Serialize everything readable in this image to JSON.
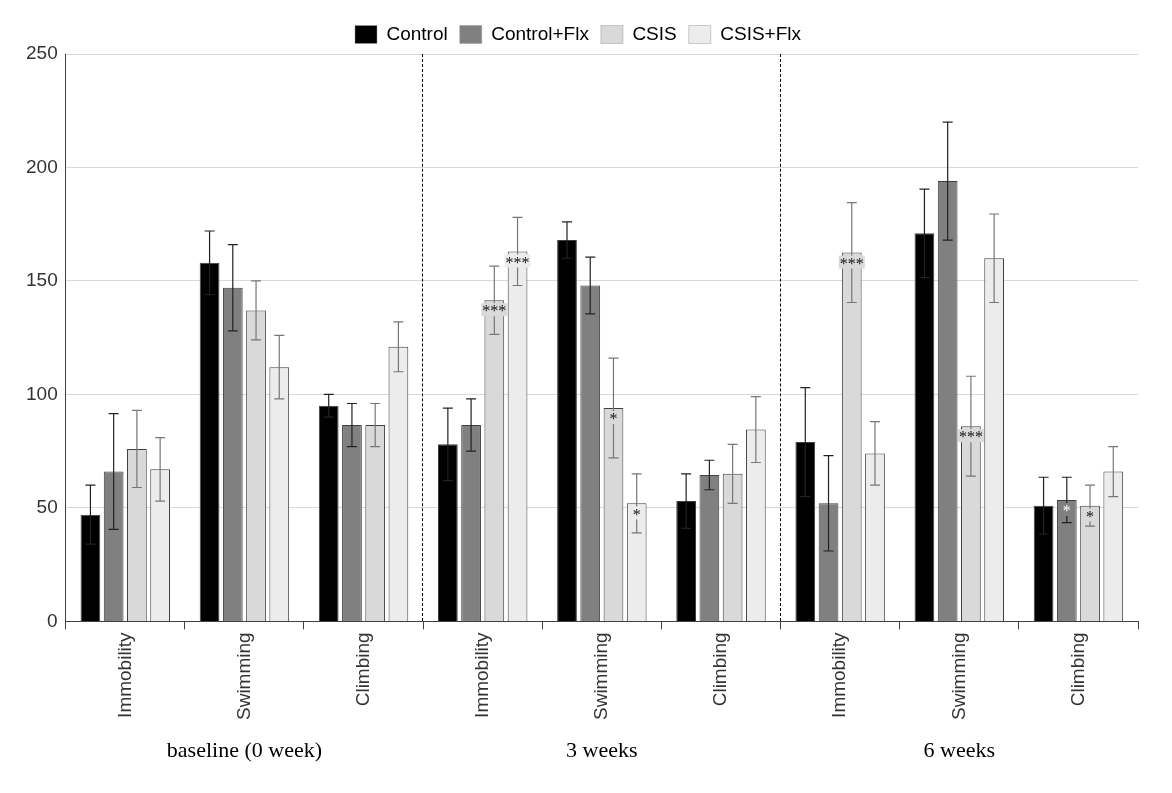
{
  "chart_data": {
    "type": "bar",
    "categories": [
      "Immobility",
      "Swimming",
      "Climbing",
      "Immobility",
      "Swimming",
      "Climbing",
      "Immobility",
      "Swimming",
      "Climbing"
    ],
    "series": [
      {
        "name": "Control",
        "color": "#000000",
        "values": [
          47,
          158,
          95,
          78,
          168,
          53,
          79,
          171,
          51
        ],
        "errors": [
          13,
          14,
          5,
          16,
          8,
          12,
          24,
          19.5,
          12.5
        ]
      },
      {
        "name": "Control+Flx",
        "color": "#808080",
        "values": [
          66,
          147,
          86.5,
          86.5,
          148,
          64.5,
          52,
          194,
          53.5
        ],
        "errors": [
          25.5,
          19,
          9.5,
          11.5,
          12.5,
          6.5,
          21,
          26,
          10
        ],
        "value_labels": [
          null,
          null,
          null,
          null,
          null,
          null,
          null,
          null,
          "*"
        ]
      },
      {
        "name": "CSIS",
        "color": "#d9d9d9",
        "values": [
          76,
          137,
          86.5,
          141.5,
          94,
          65,
          162.5,
          86,
          51
        ],
        "errors": [
          17,
          13,
          9.5,
          15,
          22,
          13,
          22,
          22,
          9
        ],
        "value_labels": [
          null,
          null,
          null,
          "***",
          "*",
          null,
          "***",
          "***",
          "*"
        ]
      },
      {
        "name": "CSIS+Flx",
        "color": "#ececec",
        "values": [
          67,
          112,
          121,
          163,
          52,
          84.5,
          74,
          160,
          66
        ],
        "errors": [
          14,
          14,
          11,
          15,
          13,
          14.5,
          14,
          19.5,
          11
        ],
        "value_labels": [
          null,
          null,
          null,
          "***",
          "*",
          null,
          null,
          null,
          null
        ]
      }
    ],
    "ylim": [
      0,
      250
    ],
    "yticks": [
      0,
      50,
      100,
      150,
      200,
      250
    ],
    "grid": "y",
    "legend": "top",
    "annotations": [
      "baseline (0 week)",
      "3 weeks",
      "6 weeks"
    ]
  }
}
